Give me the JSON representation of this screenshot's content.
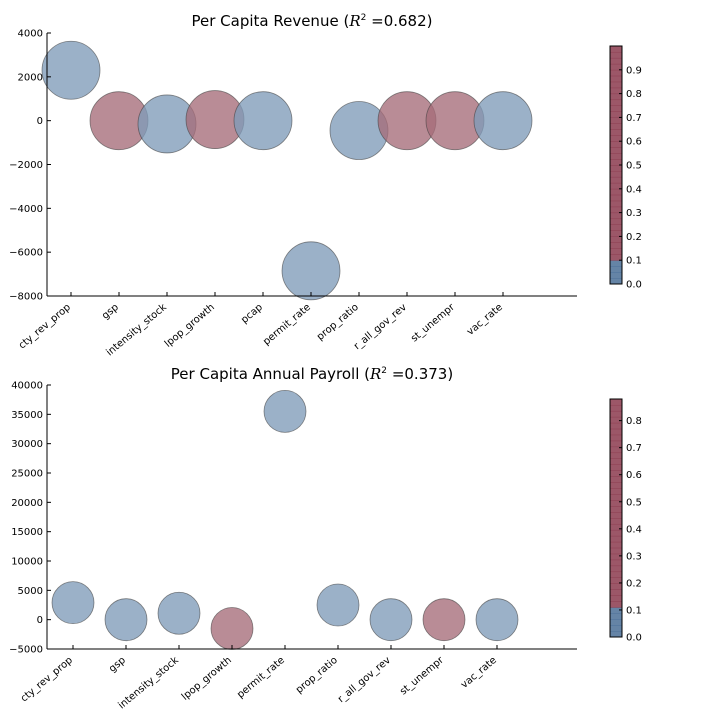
{
  "charts": [
    {
      "type": "scatter",
      "title_main": "Per Capita Revenue",
      "r_squared_label": "R",
      "r_squared_sup": "2",
      "r_squared_value": "=0.682",
      "ylim": [
        -8000,
        4000
      ],
      "yticks": [
        4000,
        2000,
        0,
        -2000,
        -4000,
        -6000,
        -8000
      ],
      "ytick_labels": [
        "4000",
        "2000",
        "0",
        "−2000",
        "−4000",
        "−6000",
        "−8000"
      ],
      "categories": [
        "cty_rev_prop",
        "gsp",
        "intensity_stock",
        "lpop_growth",
        "pcap",
        "permit_rate",
        "prop_ratio",
        "r_all_gov_rev",
        "st_unempr",
        "vac_rate"
      ],
      "values": [
        2300,
        0,
        -150,
        50,
        0,
        -6850,
        -450,
        0,
        0,
        0
      ],
      "color_values": [
        0.02,
        0.9,
        0.02,
        0.9,
        0.02,
        0.02,
        0.02,
        0.9,
        0.9,
        0.02
      ],
      "colorbar": {
        "range": [
          0,
          1.0
        ],
        "tick_labels": [
          "0.0",
          "0.1",
          "0.2",
          "0.3",
          "0.4",
          "0.5",
          "0.6",
          "0.7",
          "0.8",
          "0.9"
        ]
      }
    },
    {
      "type": "scatter",
      "title_main": "Per Capita Annual Payroll",
      "r_squared_label": "R",
      "r_squared_sup": "2",
      "r_squared_value": "=0.373",
      "ylim": [
        -5000,
        40000
      ],
      "yticks": [
        40000,
        35000,
        30000,
        25000,
        20000,
        15000,
        10000,
        5000,
        0,
        -5000
      ],
      "ytick_labels": [
        "40000",
        "35000",
        "30000",
        "25000",
        "20000",
        "15000",
        "10000",
        "5000",
        "0",
        "−5000"
      ],
      "categories": [
        "cty_rev_prop",
        "gsp",
        "intensity_stock",
        "lpop_growth",
        "permit_rate",
        "prop_ratio",
        "r_all_gov_rev",
        "st_unempr",
        "vac_rate"
      ],
      "values": [
        2900,
        0,
        1100,
        -1500,
        35500,
        2500,
        0,
        0,
        0
      ],
      "color_values": [
        0.02,
        0.02,
        0.02,
        0.85,
        0.02,
        0.02,
        0.02,
        0.85,
        0.02
      ],
      "colorbar": {
        "range": [
          0,
          0.88
        ],
        "tick_labels": [
          "0.0",
          "0.1",
          "0.2",
          "0.3",
          "0.4",
          "0.5",
          "0.6",
          "0.7",
          "0.8"
        ]
      }
    }
  ],
  "colors": {
    "low": "#4a6f96",
    "high": "#8b3a4e",
    "marker_low": "#7f9bb8",
    "marker_high": "#a56b79",
    "marker_edge": "#3a3a3a",
    "axis": "#000000"
  }
}
